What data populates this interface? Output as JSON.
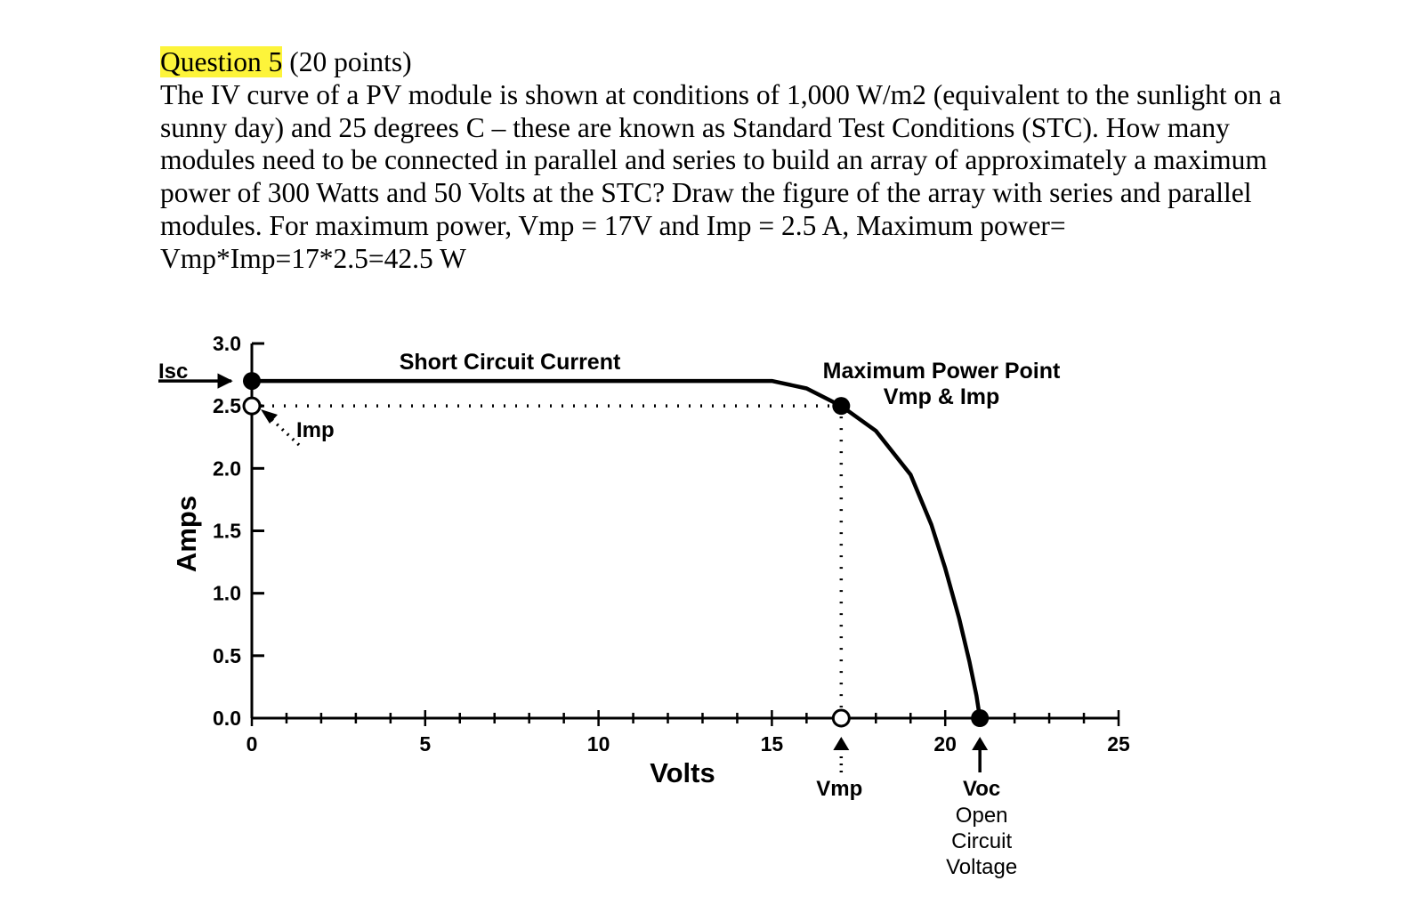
{
  "question": {
    "label": "Question 5",
    "points": " (20 points)",
    "lines": [
      "The IV curve of a PV module is shown at conditions of 1,000 W/m2 (equivalent to the sunlight on a",
      "sunny day) and 25 degrees C – these are known as Standard Test Conditions (STC). How many",
      "modules need to be connected in parallel and series to build an array of approximately a maximum",
      "power of 300 Watts and 50 Volts at the STC? Draw the figure of the array with series and parallel",
      "modules. For maximum power, Vmp = 17V and Imp = 2.5 A, Maximum power=",
      "Vmp*Imp=17*2.5=42.5 W"
    ]
  },
  "chart_data": {
    "type": "line",
    "xlabel": "Volts",
    "ylabel": "Amps",
    "xlim": [
      0,
      25
    ],
    "ylim": [
      0,
      3.0
    ],
    "x_ticks": [
      "0",
      "5",
      "10",
      "15",
      "20",
      "25"
    ],
    "y_ticks": [
      "0.0",
      "0.5",
      "1.0",
      "1.5",
      "2.0",
      "2.5",
      "3.0"
    ],
    "series": [
      {
        "x": [
          0,
          5,
          10,
          15,
          16,
          17,
          18,
          19,
          19.6,
          20,
          20.4,
          20.7,
          20.9,
          21
        ],
        "y": [
          2.7,
          2.7,
          2.7,
          2.7,
          2.64,
          2.5,
          2.3,
          1.95,
          1.55,
          1.2,
          0.8,
          0.45,
          0.18,
          0
        ]
      }
    ],
    "points": {
      "isc": {
        "x": 0,
        "y": 2.7
      },
      "imp": {
        "x": 0,
        "y": 2.5
      },
      "mpp": {
        "x": 17,
        "y": 2.5
      },
      "vmp": {
        "x": 17,
        "y": 0
      },
      "voc": {
        "x": 21,
        "y": 0
      }
    },
    "annotations": {
      "isc": "Isc",
      "imp": "Imp",
      "short_circuit": "Short Circuit Current",
      "mpp_line1": "Maximum Power Point",
      "mpp_line2": "Vmp & Imp",
      "vmp": "Vmp",
      "voc": "Voc",
      "voc_desc": [
        "Open",
        "Circuit",
        "Voltage"
      ]
    },
    "grid": false
  }
}
